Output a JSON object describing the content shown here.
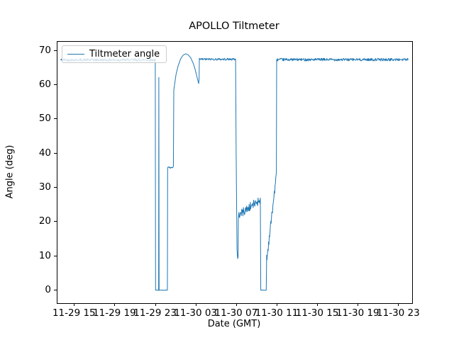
{
  "chart_data": {
    "type": "line",
    "title": "APOLLO Tiltmeter",
    "xlabel": "Date (GMT)",
    "ylabel": "Angle (deg)",
    "legend": {
      "label": "Tiltmeter angle",
      "position": "upper left"
    },
    "line_color": "#1f77b4",
    "grid": false,
    "x_unit": "hours since 11-29 00:00 GMT",
    "xlim": [
      13.3,
      48.3
    ],
    "ylim": [
      -3.7,
      72.6
    ],
    "xticks": {
      "values": [
        15,
        19,
        23,
        27,
        31,
        35,
        39,
        43,
        47
      ],
      "labels": [
        "11-29 15",
        "11-29 19",
        "11-29 23",
        "11-30 03",
        "11-30 07",
        "11-30 11",
        "11-30 15",
        "11-30 19",
        "11-30 23"
      ]
    },
    "yticks": {
      "values": [
        0,
        10,
        20,
        30,
        40,
        50,
        60,
        70
      ],
      "labels": [
        "0",
        "10",
        "20",
        "30",
        "40",
        "50",
        "60",
        "70"
      ]
    },
    "seed": 42,
    "segments": [
      {
        "type": "flat",
        "t0": 13.62,
        "t1": 22.95,
        "v": 67.3,
        "noise": 0.38,
        "dt": 0.035
      },
      {
        "type": "points",
        "pts": [
          [
            22.95,
            67.2
          ],
          [
            22.98,
            0.1
          ]
        ]
      },
      {
        "type": "flat",
        "t0": 22.98,
        "t1": 23.26,
        "v": 0.1,
        "noise": 0.05,
        "dt": 0.05
      },
      {
        "type": "points",
        "pts": [
          [
            23.28,
            0.1
          ],
          [
            23.3,
            62.2
          ],
          [
            23.33,
            0.1
          ]
        ]
      },
      {
        "type": "flat",
        "t0": 23.34,
        "t1": 24.13,
        "v": 0.1,
        "noise": 0.05,
        "dt": 0.05
      },
      {
        "type": "points",
        "pts": [
          [
            24.15,
            0.2
          ],
          [
            24.17,
            35.3
          ]
        ]
      },
      {
        "type": "flat",
        "t0": 24.18,
        "t1": 24.72,
        "v": 35.8,
        "noise": 0.35,
        "dt": 0.04
      },
      {
        "type": "points",
        "pts": [
          [
            24.74,
            36.2
          ],
          [
            24.78,
            58.5
          ],
          [
            25.0,
            63.0
          ],
          [
            25.2,
            65.5
          ],
          [
            25.45,
            67.6
          ],
          [
            25.7,
            68.7
          ],
          [
            25.95,
            69.1
          ],
          [
            26.2,
            68.8
          ],
          [
            26.45,
            67.9
          ],
          [
            26.7,
            66.3
          ],
          [
            26.9,
            64.4
          ],
          [
            27.05,
            62.6
          ],
          [
            27.18,
            61.0
          ],
          [
            27.24,
            60.4
          ],
          [
            27.28,
            62.0
          ],
          [
            27.3,
            67.3
          ]
        ]
      },
      {
        "type": "flat",
        "t0": 27.31,
        "t1": 30.86,
        "v": 67.5,
        "noise": 0.3,
        "dt": 0.035
      },
      {
        "type": "points",
        "pts": [
          [
            30.88,
            67.3
          ],
          [
            30.93,
            40.0
          ],
          [
            31.02,
            12.0
          ],
          [
            31.08,
            9.3
          ],
          [
            31.12,
            9.8
          ],
          [
            31.15,
            21.0
          ]
        ]
      },
      {
        "type": "ramp",
        "t0": 31.16,
        "t1": 33.3,
        "v0": 22.0,
        "v1": 26.5,
        "noise": 1.3,
        "dt": 0.04
      },
      {
        "type": "points",
        "pts": [
          [
            33.32,
            27.0
          ],
          [
            33.36,
            0.1
          ]
        ]
      },
      {
        "type": "flat",
        "t0": 33.37,
        "t1": 33.88,
        "v": 0.1,
        "noise": 0.05,
        "dt": 0.05
      },
      {
        "type": "points",
        "pts": [
          [
            33.9,
            0.1
          ],
          [
            33.94,
            10.3
          ],
          [
            33.98,
            9.0
          ]
        ]
      },
      {
        "type": "ramp",
        "t0": 33.99,
        "t1": 34.88,
        "v0": 10.0,
        "v1": 33.0,
        "noise": 1.2,
        "dt": 0.035
      },
      {
        "type": "points",
        "pts": [
          [
            34.9,
            34.8
          ],
          [
            34.93,
            67.2
          ]
        ]
      },
      {
        "type": "flat",
        "t0": 34.94,
        "t1": 47.9,
        "v": 67.4,
        "noise": 0.38,
        "dt": 0.035
      }
    ]
  }
}
